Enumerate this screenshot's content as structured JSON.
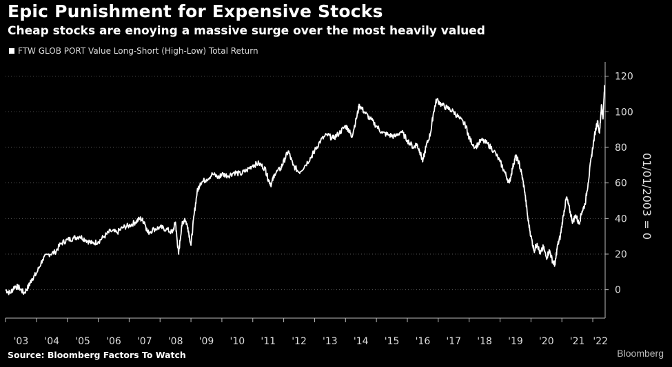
{
  "title": "Epic Punishment for Expensive Stocks",
  "subtitle": "Cheap stocks are enoying a massive surge over the most heavily valued",
  "source": "Source: Bloomberg Factors To Watch",
  "brand": "Bloomberg",
  "chart_data": {
    "type": "line",
    "series_name": "FTW GLOB PORT Value Long-Short (High-Low) Total Return",
    "ylabel": "01/01/2003 = 0",
    "ylim": [
      -16,
      128
    ],
    "yticks": [
      0,
      20,
      40,
      60,
      80,
      100,
      120
    ],
    "xlim": [
      2003.0,
      2022.4
    ],
    "xtick_labels": [
      "'03",
      "'04",
      "'05",
      "'06",
      "'07",
      "'08",
      "'09",
      "'10",
      "'11",
      "'12",
      "'13",
      "'14",
      "'15",
      "'16",
      "'17",
      "'18",
      "'19",
      "'20",
      "'21",
      "'22"
    ],
    "colors": {
      "line": "#ffffff",
      "grid": "#555555",
      "background": "#000000"
    },
    "points": [
      [
        2003.0,
        0
      ],
      [
        2003.15,
        -2
      ],
      [
        2003.3,
        2
      ],
      [
        2003.45,
        1
      ],
      [
        2003.6,
        -2
      ],
      [
        2003.75,
        2
      ],
      [
        2003.85,
        6
      ],
      [
        2004.0,
        9
      ],
      [
        2004.2,
        17
      ],
      [
        2004.4,
        20
      ],
      [
        2004.6,
        21
      ],
      [
        2004.8,
        26
      ],
      [
        2005.0,
        28
      ],
      [
        2005.2,
        29
      ],
      [
        2005.4,
        30
      ],
      [
        2005.6,
        28
      ],
      [
        2005.8,
        26
      ],
      [
        2006.0,
        27
      ],
      [
        2006.2,
        30
      ],
      [
        2006.4,
        33
      ],
      [
        2006.6,
        32
      ],
      [
        2006.8,
        35
      ],
      [
        2007.0,
        36
      ],
      [
        2007.2,
        38
      ],
      [
        2007.35,
        40
      ],
      [
        2007.5,
        38
      ],
      [
        2007.6,
        32
      ],
      [
        2007.8,
        34
      ],
      [
        2008.0,
        35
      ],
      [
        2008.2,
        34
      ],
      [
        2008.4,
        32
      ],
      [
        2008.5,
        38
      ],
      [
        2008.55,
        28
      ],
      [
        2008.6,
        20
      ],
      [
        2008.7,
        36
      ],
      [
        2008.8,
        40
      ],
      [
        2008.9,
        35
      ],
      [
        2009.0,
        25
      ],
      [
        2009.1,
        42
      ],
      [
        2009.2,
        55
      ],
      [
        2009.3,
        60
      ],
      [
        2009.5,
        62
      ],
      [
        2009.7,
        65
      ],
      [
        2009.9,
        63
      ],
      [
        2010.0,
        65
      ],
      [
        2010.2,
        64
      ],
      [
        2010.4,
        66
      ],
      [
        2010.6,
        65
      ],
      [
        2010.8,
        67
      ],
      [
        2011.0,
        70
      ],
      [
        2011.2,
        71
      ],
      [
        2011.4,
        68
      ],
      [
        2011.5,
        62
      ],
      [
        2011.6,
        59
      ],
      [
        2011.7,
        65
      ],
      [
        2011.9,
        68
      ],
      [
        2012.0,
        72
      ],
      [
        2012.15,
        78
      ],
      [
        2012.3,
        70
      ],
      [
        2012.5,
        66
      ],
      [
        2012.7,
        70
      ],
      [
        2012.9,
        75
      ],
      [
        2013.0,
        78
      ],
      [
        2013.2,
        84
      ],
      [
        2013.4,
        87
      ],
      [
        2013.6,
        85
      ],
      [
        2013.8,
        88
      ],
      [
        2014.0,
        92
      ],
      [
        2014.1,
        90
      ],
      [
        2014.2,
        86
      ],
      [
        2014.35,
        96
      ],
      [
        2014.45,
        104
      ],
      [
        2014.6,
        100
      ],
      [
        2014.8,
        96
      ],
      [
        2015.0,
        92
      ],
      [
        2015.2,
        88
      ],
      [
        2015.4,
        87
      ],
      [
        2015.6,
        86
      ],
      [
        2015.8,
        89
      ],
      [
        2016.0,
        84
      ],
      [
        2016.2,
        80
      ],
      [
        2016.3,
        82
      ],
      [
        2016.4,
        78
      ],
      [
        2016.5,
        72
      ],
      [
        2016.6,
        80
      ],
      [
        2016.75,
        88
      ],
      [
        2016.85,
        100
      ],
      [
        2016.95,
        107
      ],
      [
        2017.1,
        104
      ],
      [
        2017.3,
        102
      ],
      [
        2017.5,
        100
      ],
      [
        2017.7,
        96
      ],
      [
        2017.9,
        92
      ],
      [
        2018.0,
        85
      ],
      [
        2018.2,
        80
      ],
      [
        2018.4,
        84
      ],
      [
        2018.6,
        82
      ],
      [
        2018.8,
        78
      ],
      [
        2019.0,
        72
      ],
      [
        2019.15,
        66
      ],
      [
        2019.3,
        60
      ],
      [
        2019.4,
        68
      ],
      [
        2019.5,
        75
      ],
      [
        2019.6,
        72
      ],
      [
        2019.7,
        65
      ],
      [
        2019.8,
        55
      ],
      [
        2019.9,
        40
      ],
      [
        2020.0,
        30
      ],
      [
        2020.1,
        22
      ],
      [
        2020.2,
        26
      ],
      [
        2020.3,
        20
      ],
      [
        2020.4,
        24
      ],
      [
        2020.5,
        18
      ],
      [
        2020.6,
        22
      ],
      [
        2020.7,
        16
      ],
      [
        2020.78,
        14
      ],
      [
        2020.85,
        24
      ],
      [
        2020.95,
        30
      ],
      [
        2021.05,
        42
      ],
      [
        2021.15,
        52
      ],
      [
        2021.25,
        45
      ],
      [
        2021.35,
        38
      ],
      [
        2021.45,
        42
      ],
      [
        2021.55,
        37
      ],
      [
        2021.65,
        44
      ],
      [
        2021.75,
        48
      ],
      [
        2021.85,
        60
      ],
      [
        2021.95,
        74
      ],
      [
        2022.05,
        86
      ],
      [
        2022.15,
        95
      ],
      [
        2022.22,
        88
      ],
      [
        2022.28,
        104
      ],
      [
        2022.33,
        96
      ],
      [
        2022.38,
        115
      ]
    ]
  }
}
